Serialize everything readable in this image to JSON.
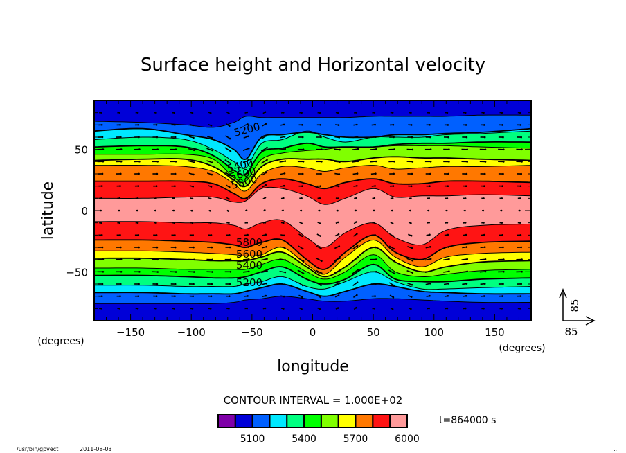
{
  "chart_data": {
    "type": "heatmap",
    "subtype": "filled-contour-with-vectors",
    "title": "Surface height and Horizontal velocity",
    "xlabel": "longitude",
    "ylabel": "latitude",
    "x_units": "(degrees)",
    "y_units": "(degrees)",
    "xlim": [
      -180,
      180
    ],
    "ylim": [
      -90,
      90
    ],
    "x_ticks": [
      -150,
      -100,
      -50,
      0,
      50,
      100,
      150
    ],
    "y_ticks": [
      -50,
      0,
      50
    ],
    "contour_interval_label": "CONTOUR INTERVAL = 1.000E+02",
    "time_label": "t=864000 s",
    "vector_reference": {
      "x_value": "85",
      "y_value": "85"
    },
    "colorbar": {
      "levels": [
        4900,
        5000,
        5100,
        5200,
        5300,
        5400,
        5500,
        5600,
        5700,
        5800,
        5900,
        6000
      ],
      "colors": [
        "#7f00a8",
        "#0000d8",
        "#0060ff",
        "#00e8ff",
        "#00ff80",
        "#00ff00",
        "#80ff00",
        "#ffff00",
        "#ff7800",
        "#ff1414",
        "#ff9a9a"
      ],
      "tick_labels": [
        "5100",
        "5400",
        "5700",
        "6000"
      ]
    },
    "contour_labels": {
      "north": [
        "5200",
        "5400",
        "5600",
        "5800"
      ],
      "south": [
        "5800",
        "5600",
        "5400",
        "5200"
      ]
    },
    "contour_levels_north": {
      "lon": [
        -180,
        -140,
        -105,
        -82,
        -65,
        -55,
        -42,
        -25,
        -5,
        10,
        27,
        50,
        68,
        90,
        110,
        140,
        180
      ],
      "5100": [
        73,
        72,
        70,
        68,
        72,
        77,
        76,
        76,
        76,
        76,
        76,
        77,
        77,
        77,
        77,
        78,
        78
      ],
      "5200": [
        65,
        67,
        62,
        58,
        50,
        42,
        60,
        62,
        64,
        62,
        60,
        60,
        62,
        62,
        63,
        64,
        67
      ],
      "5300": [
        58,
        60,
        58,
        50,
        40,
        35,
        55,
        58,
        65,
        60,
        56,
        60,
        60,
        60,
        62,
        63,
        65
      ],
      "5400": [
        52,
        53,
        52,
        45,
        33,
        30,
        48,
        51,
        55,
        52,
        52,
        52,
        54,
        55,
        55,
        56,
        56
      ],
      "5500": [
        46,
        46,
        46,
        42,
        27,
        24,
        42,
        47,
        49,
        50,
        52,
        52,
        53,
        53,
        53,
        52,
        51
      ],
      "5600": [
        41,
        42,
        42,
        36,
        25,
        20,
        36,
        42,
        42,
        42,
        40,
        43,
        44,
        43,
        43,
        42,
        41
      ],
      "5700": [
        37,
        37,
        36,
        32,
        22,
        16,
        30,
        36,
        35,
        32,
        35,
        37,
        34,
        35,
        36,
        36,
        37
      ],
      "5800": [
        24,
        24,
        24,
        22,
        14,
        10,
        22,
        26,
        22,
        18,
        23,
        26,
        22,
        22,
        24,
        24,
        23
      ],
      "5900": [
        10,
        10,
        11,
        11,
        7,
        8,
        18,
        18,
        12,
        5,
        10,
        18,
        11,
        12,
        12,
        13,
        12
      ]
    },
    "contour_levels_south": {
      "lon": [
        -180,
        -140,
        -105,
        -82,
        -65,
        -55,
        -42,
        -25,
        -5,
        10,
        27,
        50,
        68,
        90,
        110,
        140,
        180
      ],
      "5900": [
        -9,
        -9,
        -10,
        -10,
        -12,
        -15,
        -10,
        -8,
        -22,
        -30,
        -18,
        -10,
        -22,
        -28,
        -16,
        -12,
        -11
      ],
      "5800": [
        -24,
        -24,
        -25,
        -26,
        -28,
        -30,
        -26,
        -24,
        -40,
        -48,
        -34,
        -20,
        -34,
        -40,
        -30,
        -26,
        -25
      ],
      "5700": [
        -33,
        -33,
        -34,
        -35,
        -36,
        -37,
        -36,
        -30,
        -44,
        -52,
        -38,
        -24,
        -38,
        -46,
        -38,
        -35,
        -34
      ],
      "5600": [
        -39,
        -39,
        -40,
        -41,
        -41,
        -41,
        -38,
        -34,
        -46,
        -54,
        -46,
        -30,
        -42,
        -50,
        -46,
        -42,
        -41
      ],
      "5500": [
        -47,
        -47,
        -48,
        -48,
        -48,
        -48,
        -44,
        -40,
        -50,
        -56,
        -50,
        -36,
        -50,
        -54,
        -52,
        -49,
        -48
      ],
      "5400": [
        -53,
        -53,
        -54,
        -55,
        -55,
        -54,
        -50,
        -46,
        -56,
        -60,
        -56,
        -44,
        -56,
        -58,
        -58,
        -56,
        -55
      ],
      "5300": [
        -61,
        -61,
        -62,
        -62,
        -62,
        -60,
        -58,
        -54,
        -62,
        -64,
        -58,
        -50,
        -58,
        -64,
        -64,
        -63,
        -62
      ],
      "5200": [
        -67,
        -67,
        -68,
        -68,
        -68,
        -66,
        -63,
        -60,
        -66,
        -70,
        -66,
        -60,
        -62,
        -66,
        -67,
        -68,
        -68
      ],
      "5100": [
        -76,
        -76,
        -76,
        -76,
        -75,
        -73,
        -72,
        -70,
        -72,
        -74,
        -74,
        -72,
        -72,
        -73,
        -74,
        -75,
        -75
      ]
    }
  },
  "footer": {
    "program": "/usr/bin/gpvect",
    "date": "2011-08-03",
    "right_marker": "..."
  }
}
